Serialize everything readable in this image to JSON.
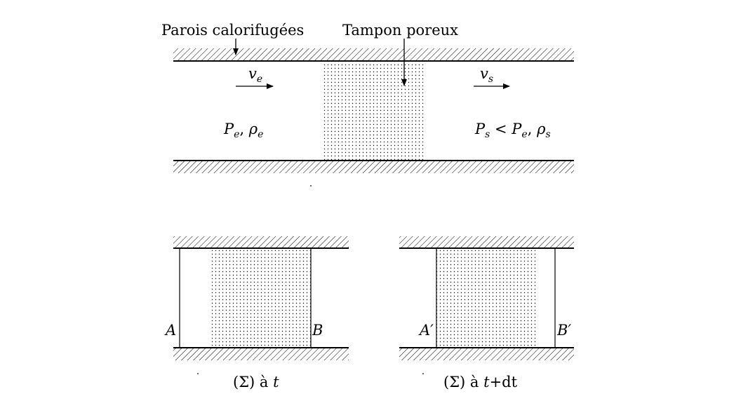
{
  "figure": {
    "callouts": {
      "walls": "Parois calorifugées",
      "plug": "Tampon poreux"
    },
    "flow": {
      "inlet_velocity": {
        "symbol": "v",
        "sub": "e"
      },
      "outlet_velocity": {
        "symbol": "v",
        "sub": "s"
      }
    },
    "states": {
      "inlet": {
        "p": "P",
        "p_sub": "e",
        "sep": ", ",
        "rho": "ρ",
        "rho_sub": "e"
      },
      "outlet": {
        "p": "P",
        "p_sub": "s",
        "op": " < ",
        "p2": "P",
        "p2_sub": "e",
        "sep": ", ",
        "rho": "ρ",
        "rho_sub": "s"
      }
    },
    "system_t": {
      "left_point": "A",
      "right_point": "B",
      "caption_main": "(Σ) à ",
      "caption_var": "t"
    },
    "system_tdt": {
      "left_point": "A′",
      "right_point": "B′",
      "caption_main": "(Σ) à ",
      "caption_var": "t",
      "caption_rest": "+dt"
    }
  },
  "colors": {
    "ink": "#000000",
    "background": "#ffffff"
  }
}
